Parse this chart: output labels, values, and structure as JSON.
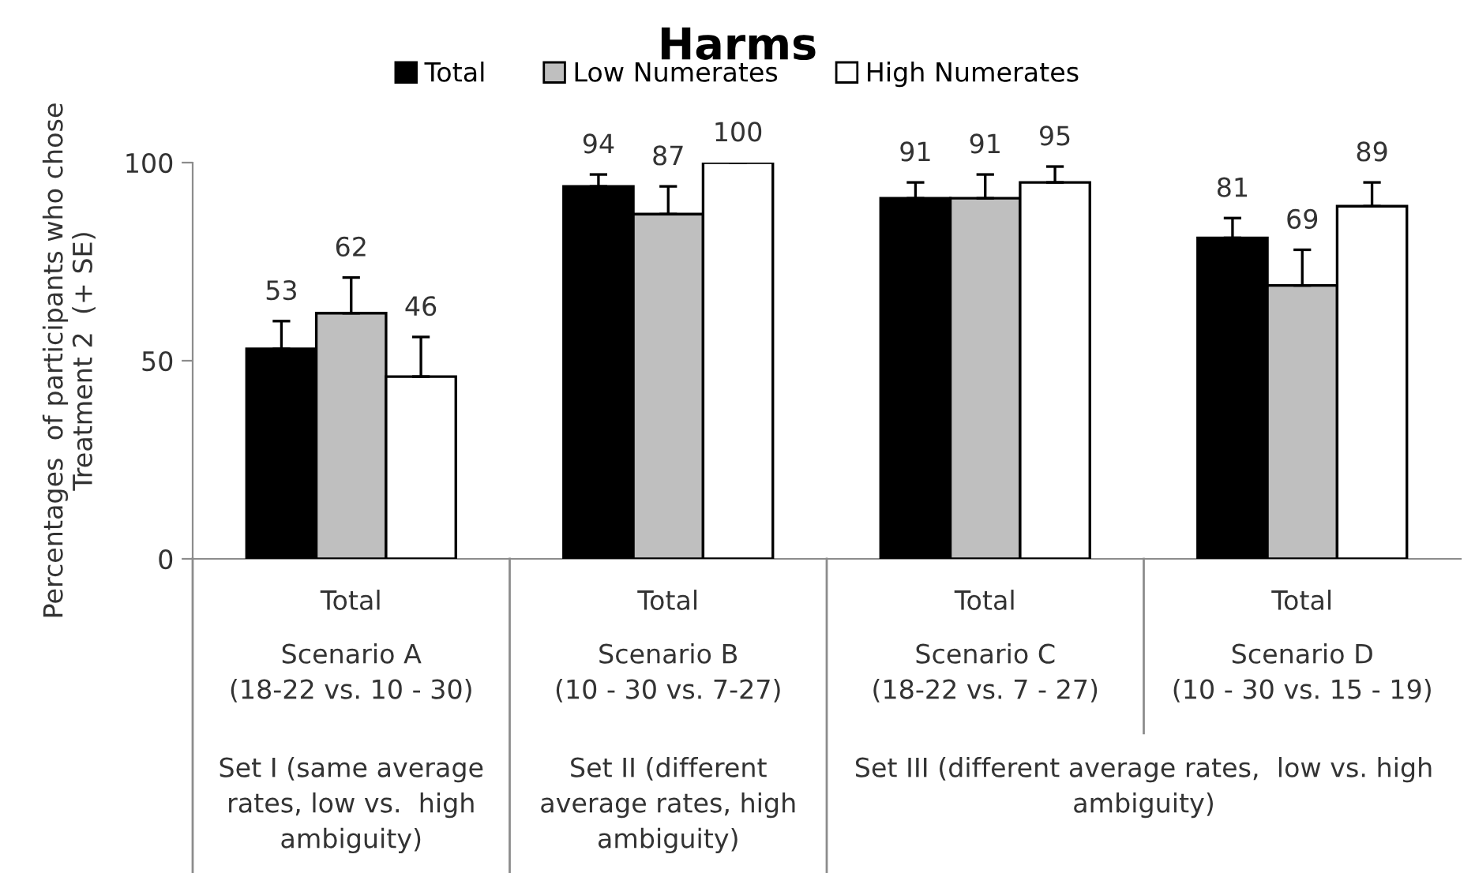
{
  "chart_data": {
    "type": "bar",
    "title": "Harms",
    "ylabel": "Percentages  of participants who chose\nTreatment 2  (+ SE)",
    "categories": [
      "Total",
      "Total",
      "Total",
      "Total"
    ],
    "series": [
      {
        "name": "Total",
        "color": "#000000",
        "values": [
          53,
          94,
          91,
          81
        ],
        "errors": [
          [
            53,
            60
          ],
          [
            94,
            97
          ],
          [
            91,
            95
          ],
          [
            81,
            86
          ]
        ]
      },
      {
        "name": "Low Numerates",
        "color": "#bfbfbf",
        "values": [
          62,
          87,
          91,
          69
        ],
        "errors": [
          [
            62,
            71
          ],
          [
            87,
            94
          ],
          [
            91,
            97
          ],
          [
            69,
            78
          ]
        ]
      },
      {
        "name": "High Numerates",
        "color": "#ffffff",
        "values": [
          46,
          100,
          95,
          89
        ],
        "errors": [
          [
            46,
            56
          ],
          [
            100,
            100
          ],
          [
            95,
            99
          ],
          [
            89,
            95
          ]
        ]
      }
    ],
    "annotations": [
      "Scenario A\n(18-22 vs. 10 - 30)",
      "Scenario B\n(10 - 30 vs. 7-27)",
      "Scenario C\n(18-22 vs. 7 - 27)",
      "Scenario D\n(10 - 30 vs. 15 - 19)",
      "Set I (same average\nrates, low vs.  high\nambiguity)",
      "Set II (different\naverage rates, high\nambiguity)",
      "Set III (different average rates,  low vs. high\nambiguity)"
    ],
    "ylim": [
      0,
      100
    ],
    "yticks": [
      0,
      50,
      100
    ],
    "grid": false,
    "legend": "top",
    "data_labels": true
  }
}
